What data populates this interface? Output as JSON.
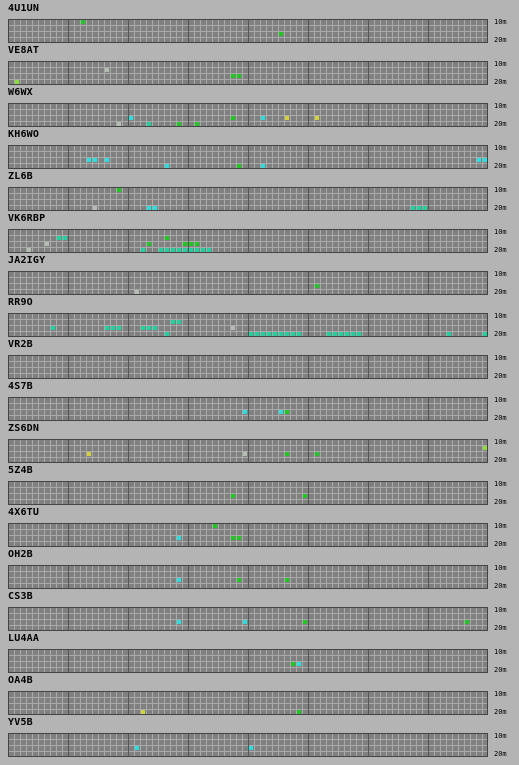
{
  "bands": {
    "top": "10m",
    "bottom": "20m"
  },
  "colors": {
    "green": "#1ec81e",
    "teal": "#1ed2a0",
    "cyan": "#2adede",
    "lime": "#8cdc3c",
    "yellow": "#d2d23c",
    "gray": "#b4bdb4"
  },
  "stations": [
    {
      "call": "4U1UN",
      "marks": [
        [
          12,
          0,
          "green"
        ],
        [
          45,
          2,
          "green"
        ]
      ]
    },
    {
      "call": "VE8AT",
      "marks": [
        [
          16,
          1,
          "gray"
        ],
        [
          37,
          2,
          "green"
        ],
        [
          38,
          2,
          "green"
        ],
        [
          1,
          3,
          "lime"
        ]
      ]
    },
    {
      "call": "W6WX",
      "marks": [
        [
          20,
          2,
          "cyan"
        ],
        [
          18,
          3,
          "gray"
        ],
        [
          23,
          3,
          "teal"
        ],
        [
          28,
          3,
          "green"
        ],
        [
          31,
          3,
          "green"
        ],
        [
          37,
          2,
          "green"
        ],
        [
          42,
          2,
          "cyan"
        ],
        [
          46,
          2,
          "yellow"
        ],
        [
          51,
          2,
          "yellow"
        ]
      ]
    },
    {
      "call": "KH6WO",
      "marks": [
        [
          13,
          2,
          "cyan"
        ],
        [
          14,
          2,
          "cyan"
        ],
        [
          16,
          2,
          "cyan"
        ],
        [
          26,
          3,
          "cyan"
        ],
        [
          38,
          3,
          "green"
        ],
        [
          42,
          3,
          "cyan"
        ],
        [
          78,
          2,
          "cyan"
        ],
        [
          79,
          2,
          "cyan"
        ]
      ]
    },
    {
      "call": "ZL6B",
      "marks": [
        [
          18,
          0,
          "green"
        ],
        [
          14,
          3,
          "gray"
        ],
        [
          23,
          3,
          "cyan"
        ],
        [
          24,
          3,
          "cyan"
        ],
        [
          67,
          3,
          "teal"
        ],
        [
          68,
          3,
          "teal"
        ],
        [
          69,
          3,
          "teal"
        ]
      ]
    },
    {
      "call": "VK6RBP",
      "marks": [
        [
          8,
          1,
          "teal"
        ],
        [
          9,
          1,
          "teal"
        ],
        [
          6,
          2,
          "gray"
        ],
        [
          3,
          3,
          "gray"
        ],
        [
          26,
          1,
          "green"
        ],
        [
          23,
          2,
          "green"
        ],
        [
          29,
          2,
          "green"
        ],
        [
          30,
          2,
          "green"
        ],
        [
          31,
          2,
          "green"
        ],
        [
          22,
          3,
          "teal"
        ],
        [
          25,
          3,
          "teal"
        ],
        [
          26,
          3,
          "teal"
        ],
        [
          27,
          3,
          "teal"
        ],
        [
          28,
          3,
          "teal"
        ],
        [
          29,
          3,
          "teal"
        ],
        [
          30,
          3,
          "teal"
        ],
        [
          31,
          3,
          "teal"
        ],
        [
          32,
          3,
          "teal"
        ],
        [
          33,
          3,
          "teal"
        ]
      ]
    },
    {
      "call": "JA2IGY",
      "marks": [
        [
          21,
          3,
          "gray"
        ],
        [
          51,
          2,
          "green"
        ]
      ]
    },
    {
      "call": "RR9O",
      "marks": [
        [
          27,
          1,
          "teal"
        ],
        [
          28,
          1,
          "teal"
        ],
        [
          7,
          2,
          "teal"
        ],
        [
          16,
          2,
          "teal"
        ],
        [
          17,
          2,
          "teal"
        ],
        [
          18,
          2,
          "teal"
        ],
        [
          22,
          2,
          "teal"
        ],
        [
          23,
          2,
          "teal"
        ],
        [
          24,
          2,
          "teal"
        ],
        [
          37,
          2,
          "gray"
        ],
        [
          26,
          3,
          "teal"
        ],
        [
          40,
          3,
          "teal"
        ],
        [
          41,
          3,
          "teal"
        ],
        [
          42,
          3,
          "teal"
        ],
        [
          43,
          3,
          "teal"
        ],
        [
          44,
          3,
          "teal"
        ],
        [
          45,
          3,
          "teal"
        ],
        [
          46,
          3,
          "teal"
        ],
        [
          47,
          3,
          "teal"
        ],
        [
          48,
          3,
          "teal"
        ],
        [
          53,
          3,
          "teal"
        ],
        [
          54,
          3,
          "teal"
        ],
        [
          55,
          3,
          "teal"
        ],
        [
          56,
          3,
          "teal"
        ],
        [
          57,
          3,
          "teal"
        ],
        [
          58,
          3,
          "teal"
        ],
        [
          73,
          3,
          "teal"
        ],
        [
          79,
          3,
          "teal"
        ]
      ]
    },
    {
      "call": "VR2B",
      "marks": []
    },
    {
      "call": "4S7B",
      "marks": [
        [
          39,
          2,
          "cyan"
        ],
        [
          45,
          2,
          "cyan"
        ],
        [
          46,
          2,
          "green"
        ]
      ]
    },
    {
      "call": "ZS6DN",
      "marks": [
        [
          13,
          2,
          "yellow"
        ],
        [
          39,
          2,
          "gray"
        ],
        [
          46,
          2,
          "green"
        ],
        [
          51,
          2,
          "green"
        ],
        [
          79,
          1,
          "lime"
        ]
      ]
    },
    {
      "call": "5Z4B",
      "marks": [
        [
          37,
          2,
          "green"
        ],
        [
          49,
          2,
          "green"
        ]
      ]
    },
    {
      "call": "4X6TU",
      "marks": [
        [
          34,
          0,
          "green"
        ],
        [
          28,
          2,
          "cyan"
        ],
        [
          37,
          2,
          "green"
        ],
        [
          38,
          2,
          "green"
        ]
      ]
    },
    {
      "call": "OH2B",
      "marks": [
        [
          28,
          2,
          "cyan"
        ],
        [
          38,
          2,
          "green"
        ],
        [
          46,
          2,
          "green"
        ]
      ]
    },
    {
      "call": "CS3B",
      "marks": [
        [
          28,
          2,
          "cyan"
        ],
        [
          39,
          2,
          "cyan"
        ],
        [
          49,
          2,
          "green"
        ],
        [
          76,
          2,
          "green"
        ]
      ]
    },
    {
      "call": "LU4AA",
      "marks": [
        [
          47,
          2,
          "green"
        ],
        [
          48,
          2,
          "cyan"
        ]
      ]
    },
    {
      "call": "OA4B",
      "marks": [
        [
          22,
          3,
          "yellow"
        ],
        [
          48,
          3,
          "green"
        ]
      ]
    },
    {
      "call": "YV5B",
      "marks": [
        [
          21,
          2,
          "cyan"
        ],
        [
          40,
          2,
          "cyan"
        ]
      ]
    }
  ]
}
